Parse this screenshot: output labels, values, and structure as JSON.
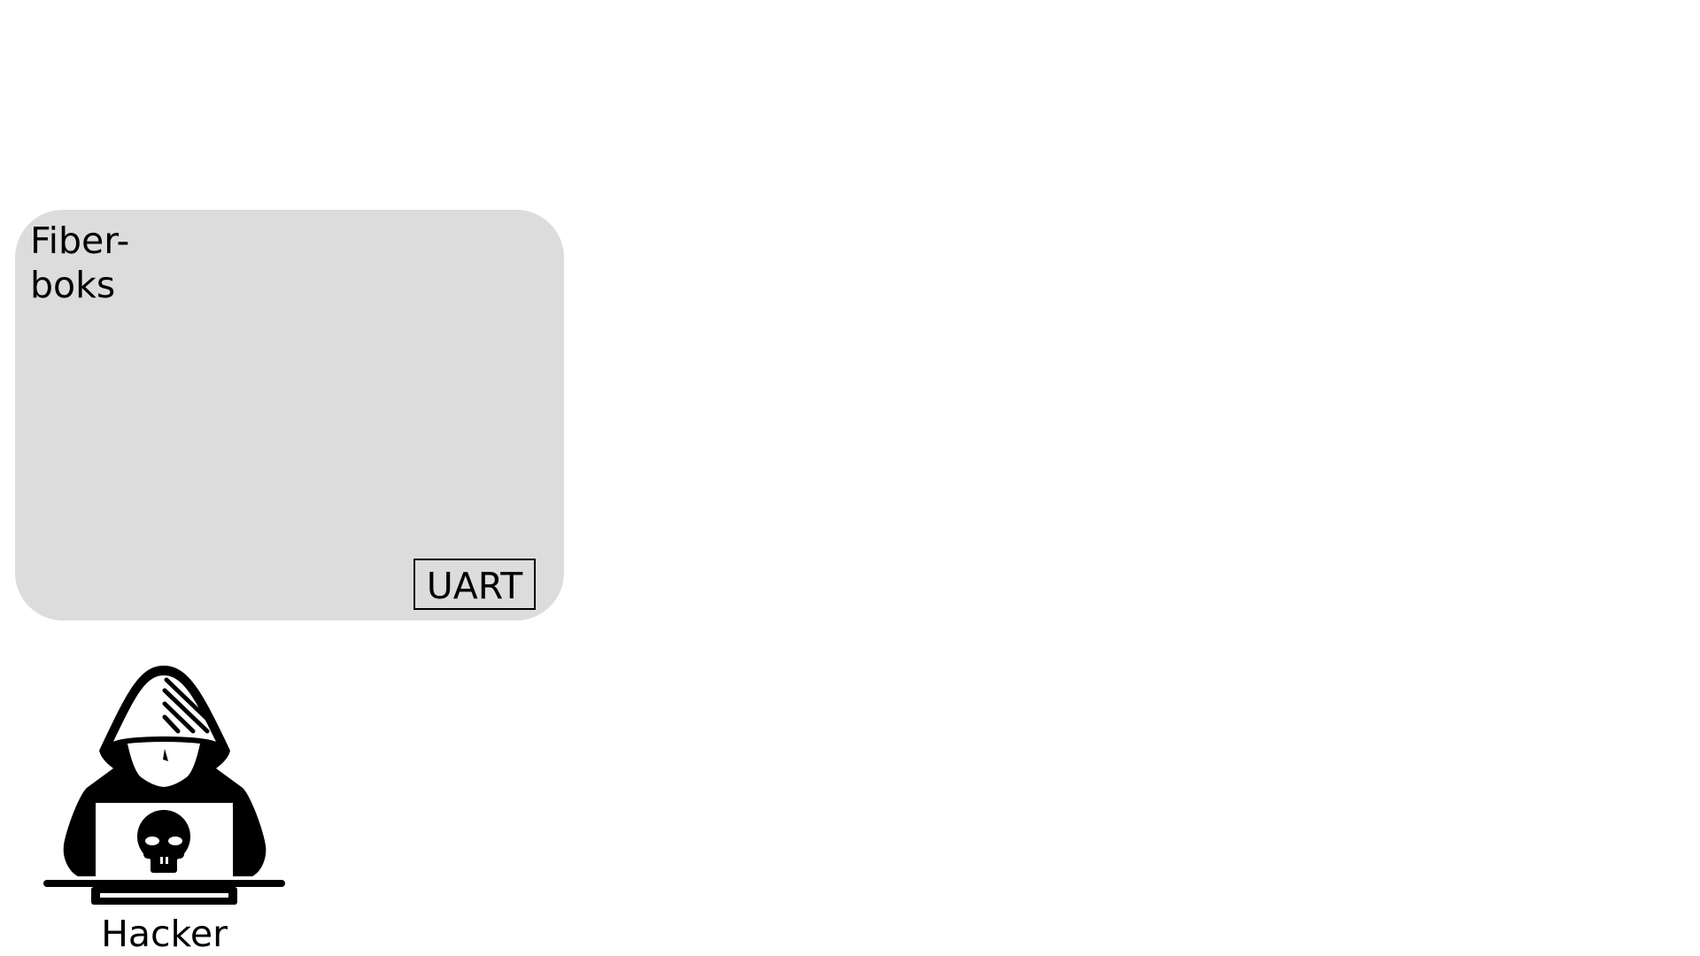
{
  "fiberbox": {
    "label": "Fiber-\nboks",
    "background_color": "#dcdcdc"
  },
  "uart": {
    "label": "UART"
  },
  "hacker": {
    "label": "Hacker"
  }
}
